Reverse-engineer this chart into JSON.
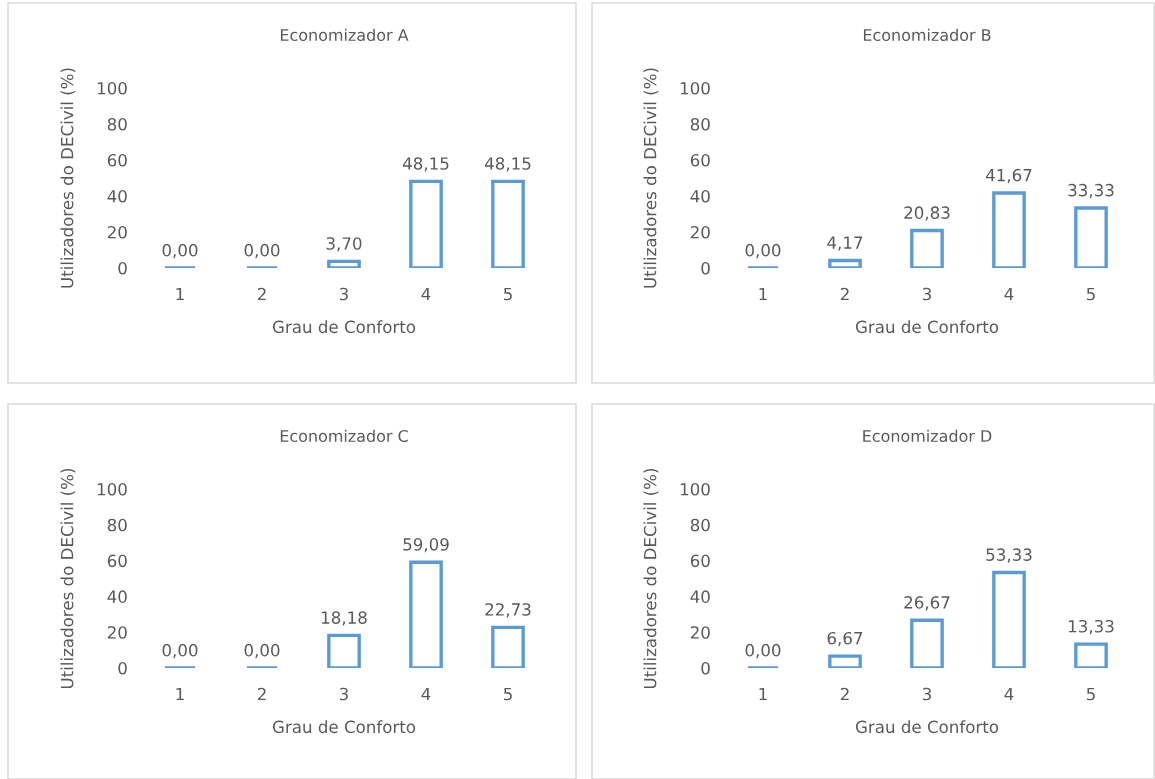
{
  "chart_data": [
    {
      "type": "bar",
      "title": "Economizador A",
      "xlabel": "Grau de Conforto",
      "ylabel": "Utilizadores do DECivil (%)",
      "categories": [
        "1",
        "2",
        "3",
        "4",
        "5"
      ],
      "values": [
        0.0,
        0.0,
        3.7,
        48.15,
        48.15
      ],
      "value_labels": [
        "0,00",
        "0,00",
        "3,70",
        "48,15",
        "48,15"
      ],
      "color": "#5b9bd5",
      "ylim": [
        0,
        100
      ],
      "yticks": [
        0,
        20,
        40,
        60,
        80,
        100
      ],
      "grid": false,
      "legend": false
    },
    {
      "type": "bar",
      "title": "Economizador B",
      "xlabel": "Grau de Conforto",
      "ylabel": "Utilizadores do DECivil (%)",
      "categories": [
        "1",
        "2",
        "3",
        "4",
        "5"
      ],
      "values": [
        0.0,
        4.17,
        20.83,
        41.67,
        33.33
      ],
      "value_labels": [
        "0,00",
        "4,17",
        "20,83",
        "41,67",
        "33,33"
      ],
      "color": "#5b9bd5",
      "ylim": [
        0,
        100
      ],
      "yticks": [
        0,
        20,
        40,
        60,
        80,
        100
      ],
      "grid": false,
      "legend": false
    },
    {
      "type": "bar",
      "title": "Economizador C",
      "xlabel": "Grau de Conforto",
      "ylabel": "Utilizadores do DECivil (%)",
      "categories": [
        "1",
        "2",
        "3",
        "4",
        "5"
      ],
      "values": [
        0.0,
        0.0,
        18.18,
        59.09,
        22.73
      ],
      "value_labels": [
        "0,00",
        "0,00",
        "18,18",
        "59,09",
        "22,73"
      ],
      "color": "#5b9bd5",
      "ylim": [
        0,
        100
      ],
      "yticks": [
        0,
        20,
        40,
        60,
        80,
        100
      ],
      "grid": false,
      "legend": false
    },
    {
      "type": "bar",
      "title": "Economizador D",
      "xlabel": "Grau de Conforto",
      "ylabel": "Utilizadores do DECivil (%)",
      "categories": [
        "1",
        "2",
        "3",
        "4",
        "5"
      ],
      "values": [
        0.0,
        6.67,
        26.67,
        53.33,
        13.33
      ],
      "value_labels": [
        "0,00",
        "6,67",
        "26,67",
        "53,33",
        "13,33"
      ],
      "color": "#5b9bd5",
      "ylim": [
        0,
        100
      ],
      "yticks": [
        0,
        20,
        40,
        60,
        80,
        100
      ],
      "grid": false,
      "legend": false
    }
  ]
}
